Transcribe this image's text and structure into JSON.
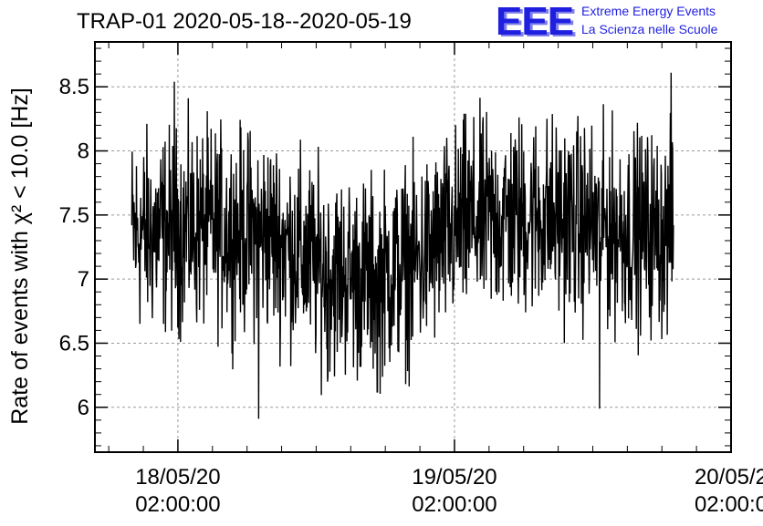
{
  "title": "TRAP-01 2020-05-18--2020-05-19",
  "logo": {
    "mark": "EEE",
    "line1": "Extreme Energy Events",
    "line2": "La Scienza nelle Scuole",
    "color": "#1f1fe0"
  },
  "chart_data": {
    "type": "line",
    "ylabel": "Rate of events with χ² < 10.0 [Hz]",
    "ylim": [
      5.65,
      8.85
    ],
    "yticks": [
      "6",
      "6.5",
      "7",
      "7.5",
      "8",
      "8.5"
    ],
    "ytick_values": [
      6,
      6.5,
      7,
      7.5,
      8,
      8.5
    ],
    "xlim_hours": [
      -7.2,
      48
    ],
    "xticks": [
      {
        "line1": "18/05/20",
        "line2": "02:00:00",
        "hour": 0
      },
      {
        "line1": "19/05/20",
        "line2": "02:00:00",
        "hour": 24
      },
      {
        "line1": "20/05/2",
        "line2": "02:00:0",
        "hour": 48
      }
    ],
    "grid": true,
    "series": [
      {
        "x_start_hour": -4,
        "x_end_hour": 43,
        "baseline_anchors": [
          [
            -4,
            7.35
          ],
          [
            2,
            7.4
          ],
          [
            8,
            7.35
          ],
          [
            13,
            7.05
          ],
          [
            17,
            7.0
          ],
          [
            21,
            7.15
          ],
          [
            25,
            7.45
          ],
          [
            31,
            7.5
          ],
          [
            37,
            7.4
          ],
          [
            43,
            7.35
          ]
        ],
        "amplitude": 0.38,
        "line_color": "#000000",
        "spikes": [
          {
            "hour": 7.0,
            "value": 5.91
          },
          {
            "hour": 17.3,
            "value": 6.12
          },
          {
            "hour": 36.6,
            "value": 5.99
          },
          {
            "hour": 42.8,
            "value": 8.61
          },
          {
            "hour": -0.3,
            "value": 8.54
          },
          {
            "hour": 13.0,
            "value": 6.2
          }
        ]
      }
    ]
  }
}
